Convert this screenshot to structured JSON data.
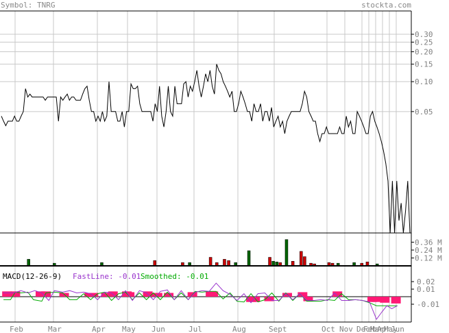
{
  "header": {
    "symbol_label": "Symbol: TNRG",
    "site": "stockta.com"
  },
  "colors": {
    "grid": "#c8c8c8",
    "frame": "#000000",
    "axis_text": "#808080",
    "volume_up": "#006400",
    "volume_down": "#cc0000",
    "macd_fast": "#9933cc",
    "macd_smoothed": "#00aa00",
    "histogram": "#ff1a75"
  },
  "chart_data": [
    {
      "type": "line",
      "title": "",
      "scale": "log",
      "ylim": [
        0.003,
        0.3
      ],
      "y_ticks": [
        {
          "value": 0.3,
          "label": "0.30"
        },
        {
          "value": 0.25,
          "label": "0.25"
        },
        {
          "value": 0.2,
          "label": "0.20"
        },
        {
          "value": 0.15,
          "label": "0.15"
        },
        {
          "value": 0.1,
          "label": "0.10"
        },
        {
          "value": 0.05,
          "label": "0.05"
        }
      ],
      "x_labels": [
        "Feb",
        "Mar",
        "Apr",
        "May",
        "Jun",
        "Jul",
        "Aug",
        "Sept",
        "Oct",
        "Nov",
        "Dec",
        "Feb",
        "Mar",
        "Apr",
        "May",
        "Jun"
      ],
      "series": [
        {
          "values": [
            0.045,
            0.04,
            0.036,
            0.04,
            0.04,
            0.04,
            0.045,
            0.04,
            0.04,
            0.045,
            0.05,
            0.085,
            0.07,
            0.075,
            0.07,
            0.07,
            0.07,
            0.07,
            0.07,
            0.07,
            0.065,
            0.07,
            0.07,
            0.07,
            0.07,
            0.07,
            0.04,
            0.07,
            0.065,
            0.07,
            0.075,
            0.065,
            0.07,
            0.07,
            0.065,
            0.065,
            0.065,
            0.075,
            0.085,
            0.09,
            0.065,
            0.05,
            0.05,
            0.04,
            0.045,
            0.04,
            0.05,
            0.04,
            0.045,
            0.1,
            0.05,
            0.05,
            0.05,
            0.04,
            0.04,
            0.05,
            0.035,
            0.05,
            0.05,
            0.095,
            0.085,
            0.085,
            0.09,
            0.06,
            0.05,
            0.05,
            0.05,
            0.05,
            0.05,
            0.04,
            0.06,
            0.05,
            0.09,
            0.045,
            0.035,
            0.05,
            0.09,
            0.05,
            0.045,
            0.09,
            0.06,
            0.06,
            0.06,
            0.095,
            0.1,
            0.07,
            0.09,
            0.08,
            0.1,
            0.13,
            0.09,
            0.07,
            0.09,
            0.12,
            0.1,
            0.13,
            0.09,
            0.075,
            0.15,
            0.13,
            0.12,
            0.1,
            0.09,
            0.08,
            0.07,
            0.08,
            0.05,
            0.05,
            0.06,
            0.08,
            0.07,
            0.06,
            0.05,
            0.05,
            0.04,
            0.06,
            0.05,
            0.05,
            0.06,
            0.04,
            0.05,
            0.05,
            0.04,
            0.055,
            0.035,
            0.04,
            0.045,
            0.035,
            0.04,
            0.03,
            0.04,
            0.045,
            0.05,
            0.05,
            0.05,
            0.05,
            0.05,
            0.06,
            0.08,
            0.07,
            0.05,
            0.045,
            0.04,
            0.04,
            0.03,
            0.025,
            0.03,
            0.03,
            0.035,
            0.03,
            0.03,
            0.03,
            0.03,
            0.03,
            0.035,
            0.03,
            0.03,
            0.045,
            0.035,
            0.04,
            0.03,
            0.03,
            0.05,
            0.045,
            0.04,
            0.035,
            0.03,
            0.03,
            0.045,
            0.05,
            0.04,
            0.035,
            0.03,
            0.025,
            0.02,
            0.015,
            0.01,
            0.003,
            0.01,
            0.003,
            0.01,
            0.004,
            0.006,
            0.003,
            0.005,
            0.01,
            0.003
          ],
          "color": "#000000"
        }
      ]
    },
    {
      "type": "bar",
      "title": "",
      "y_ticks": [
        {
          "value": 0.36,
          "label": "0.36 M"
        },
        {
          "value": 0.24,
          "label": "0.24 M"
        },
        {
          "value": 0.12,
          "label": "0.12 M"
        }
      ],
      "ylim": [
        0,
        0.5
      ],
      "volume": [
        {
          "i": 41,
          "v": 0.1,
          "dir": "up"
        },
        {
          "i": 78,
          "v": 0.04,
          "dir": "up"
        },
        {
          "i": 146,
          "v": 0.05,
          "dir": "up"
        },
        {
          "i": 222,
          "v": 0.08,
          "dir": "down"
        },
        {
          "i": 262,
          "v": 0.05,
          "dir": "down"
        },
        {
          "i": 272,
          "v": 0.05,
          "dir": "up"
        },
        {
          "i": 302,
          "v": 0.13,
          "dir": "down"
        },
        {
          "i": 311,
          "v": 0.05,
          "dir": "down"
        },
        {
          "i": 322,
          "v": 0.1,
          "dir": "down"
        },
        {
          "i": 328,
          "v": 0.08,
          "dir": "down"
        },
        {
          "i": 338,
          "v": 0.05,
          "dir": "up"
        },
        {
          "i": 357,
          "v": 0.23,
          "dir": "up"
        },
        {
          "i": 387,
          "v": 0.13,
          "dir": "down"
        },
        {
          "i": 392,
          "v": 0.07,
          "dir": "up"
        },
        {
          "i": 397,
          "v": 0.06,
          "dir": "up"
        },
        {
          "i": 402,
          "v": 0.05,
          "dir": "down"
        },
        {
          "i": 411,
          "v": 0.4,
          "dir": "up"
        },
        {
          "i": 420,
          "v": 0.07,
          "dir": "down"
        },
        {
          "i": 432,
          "v": 0.22,
          "dir": "down"
        },
        {
          "i": 437,
          "v": 0.14,
          "dir": "down"
        },
        {
          "i": 446,
          "v": 0.04,
          "dir": "down"
        },
        {
          "i": 451,
          "v": 0.03,
          "dir": "down"
        },
        {
          "i": 472,
          "v": 0.05,
          "dir": "down"
        },
        {
          "i": 477,
          "v": 0.04,
          "dir": "down"
        },
        {
          "i": 485,
          "v": 0.04,
          "dir": "up"
        },
        {
          "i": 508,
          "v": 0.05,
          "dir": "up"
        },
        {
          "i": 519,
          "v": 0.04,
          "dir": "down"
        },
        {
          "i": 527,
          "v": 0.06,
          "dir": "down"
        },
        {
          "i": 541,
          "v": 0.03,
          "dir": "up"
        }
      ]
    },
    {
      "type": "line",
      "title": "MACD(12-26-9)",
      "fastline_label": "FastLine: -0.01",
      "smoothed_label": "Smoothed: -0.01",
      "ylim": [
        -0.03,
        0.03
      ],
      "y_ticks": [
        {
          "value": 0.02,
          "label": "0.02"
        },
        {
          "value": 0.01,
          "label": "0.01"
        },
        {
          "value": -0.01,
          "label": "-0.01"
        }
      ],
      "fast_points": [
        [
          5,
          0.005
        ],
        [
          20,
          0.005
        ],
        [
          30,
          0.008
        ],
        [
          40,
          0.005
        ],
        [
          50,
          0.008
        ],
        [
          60,
          0.005
        ],
        [
          70,
          -0.005
        ],
        [
          78,
          0.008
        ],
        [
          90,
          0.006
        ],
        [
          100,
          0.008
        ],
        [
          110,
          0.005
        ],
        [
          120,
          0.006
        ],
        [
          130,
          0.004
        ],
        [
          140,
          -0.004
        ],
        [
          150,
          0.006
        ],
        [
          160,
          0.005
        ],
        [
          170,
          -0.004
        ],
        [
          180,
          0.008
        ],
        [
          190,
          -0.005
        ],
        [
          200,
          0.008
        ],
        [
          210,
          0.005
        ],
        [
          220,
          -0.004
        ],
        [
          230,
          0.007
        ],
        [
          240,
          0.009
        ],
        [
          250,
          -0.004
        ],
        [
          260,
          0.008
        ],
        [
          270,
          -0.004
        ],
        [
          280,
          0.006
        ],
        [
          290,
          0.008
        ],
        [
          300,
          0.007
        ],
        [
          310,
          0.018
        ],
        [
          320,
          0.008
        ],
        [
          330,
          0.003
        ],
        [
          340,
          -0.005
        ],
        [
          350,
          0.004
        ],
        [
          360,
          -0.008
        ],
        [
          370,
          0.004
        ],
        [
          380,
          0.005
        ],
        [
          390,
          -0.005
        ],
        [
          400,
          -0.005
        ],
        [
          410,
          0.004
        ],
        [
          420,
          -0.004
        ],
        [
          430,
          0.004
        ],
        [
          440,
          -0.005
        ],
        [
          450,
          -0.005
        ],
        [
          460,
          -0.004
        ],
        [
          470,
          -0.005
        ],
        [
          480,
          0.005
        ],
        [
          490,
          -0.005
        ],
        [
          500,
          -0.005
        ],
        [
          510,
          -0.004
        ],
        [
          520,
          -0.005
        ],
        [
          530,
          -0.007
        ],
        [
          540,
          -0.03
        ],
        [
          548,
          -0.02
        ],
        [
          555,
          -0.012
        ],
        [
          562,
          -0.016
        ],
        [
          570,
          -0.012
        ]
      ],
      "smoothed_points": [
        [
          5,
          -0.004
        ],
        [
          15,
          -0.004
        ],
        [
          22,
          0.006
        ],
        [
          30,
          0.005
        ],
        [
          40,
          0.006
        ],
        [
          48,
          -0.004
        ],
        [
          60,
          -0.006
        ],
        [
          66,
          0.005
        ],
        [
          78,
          0.006
        ],
        [
          90,
          0.005
        ],
        [
          100,
          -0.004
        ],
        [
          110,
          -0.004
        ],
        [
          120,
          0.004
        ],
        [
          130,
          -0.004
        ],
        [
          140,
          0.004
        ],
        [
          150,
          0.006
        ],
        [
          160,
          -0.005
        ],
        [
          170,
          0.004
        ],
        [
          180,
          0.006
        ],
        [
          190,
          -0.004
        ],
        [
          200,
          0.005
        ],
        [
          210,
          -0.004
        ],
        [
          220,
          0.005
        ],
        [
          230,
          -0.004
        ],
        [
          240,
          0.006
        ],
        [
          250,
          -0.004
        ],
        [
          260,
          0.005
        ],
        [
          270,
          -0.004
        ],
        [
          280,
          0.007
        ],
        [
          290,
          0.006
        ],
        [
          300,
          0.007
        ],
        [
          310,
          0.007
        ],
        [
          320,
          -0.003
        ],
        [
          330,
          0.005
        ],
        [
          340,
          -0.006
        ],
        [
          350,
          -0.007
        ],
        [
          360,
          0.004
        ],
        [
          370,
          -0.007
        ],
        [
          380,
          -0.004
        ],
        [
          390,
          0.005
        ],
        [
          400,
          -0.006
        ],
        [
          410,
          0.005
        ],
        [
          420,
          -0.005
        ],
        [
          430,
          0.004
        ],
        [
          440,
          -0.006
        ],
        [
          450,
          -0.006
        ],
        [
          460,
          -0.006
        ],
        [
          470,
          -0.004
        ],
        [
          480,
          -0.005
        ],
        [
          490,
          0.004
        ],
        [
          500,
          -0.004
        ],
        [
          510,
          -0.004
        ],
        [
          520,
          -0.005
        ],
        [
          530,
          -0.008
        ],
        [
          540,
          -0.012
        ],
        [
          550,
          -0.012
        ],
        [
          560,
          -0.012
        ],
        [
          570,
          -0.012
        ]
      ],
      "histogram": [
        {
          "i": 10,
          "v": 0.007
        },
        {
          "i": 22,
          "v": 0.007
        },
        {
          "i": 58,
          "v": 0.007
        },
        {
          "i": 66,
          "v": 0.007
        },
        {
          "i": 92,
          "v": 0.005
        },
        {
          "i": 128,
          "v": 0.005
        },
        {
          "i": 134,
          "v": 0.005
        },
        {
          "i": 152,
          "v": 0.005
        },
        {
          "i": 162,
          "v": 0.007
        },
        {
          "i": 182,
          "v": 0.007
        },
        {
          "i": 186,
          "v": 0.006
        },
        {
          "i": 212,
          "v": 0.007
        },
        {
          "i": 220,
          "v": 0.005
        },
        {
          "i": 226,
          "v": 0.005
        },
        {
          "i": 242,
          "v": 0.005
        },
        {
          "i": 276,
          "v": 0.006
        },
        {
          "i": 302,
          "v": 0.007
        },
        {
          "i": 306,
          "v": 0.007
        },
        {
          "i": 360,
          "v": -0.007
        },
        {
          "i": 366,
          "v": -0.007
        },
        {
          "i": 386,
          "v": -0.006
        },
        {
          "i": 412,
          "v": 0.005
        },
        {
          "i": 434,
          "v": 0.006
        },
        {
          "i": 442,
          "v": -0.006
        },
        {
          "i": 484,
          "v": 0.007
        },
        {
          "i": 534,
          "v": -0.007
        },
        {
          "i": 540,
          "v": -0.007
        },
        {
          "i": 552,
          "v": -0.008
        },
        {
          "i": 568,
          "v": -0.009
        }
      ]
    }
  ]
}
